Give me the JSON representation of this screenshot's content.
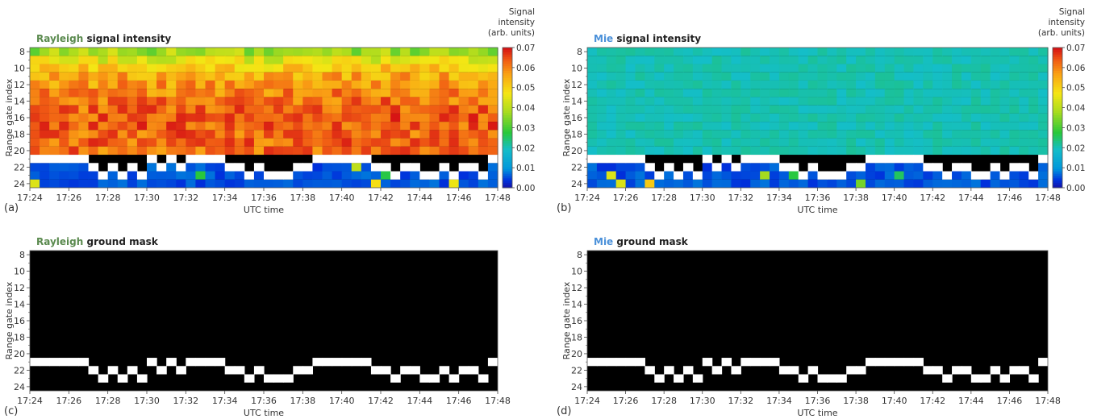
{
  "chart_data": [
    {
      "type": "heatmap",
      "panel_label": "(a)",
      "title_highlight": "Rayleigh",
      "title_rest": "signal intensity",
      "highlight_color": "#5a8a4e",
      "colormap": "rainbow",
      "xlabel": "UTC time",
      "ylabel": "Range gate index",
      "x_ticks": [
        "17:24",
        "17:26",
        "17:28",
        "17:30",
        "17:32",
        "17:34",
        "17:36",
        "17:38",
        "17:40",
        "17:42",
        "17:44",
        "17:46",
        "17:48"
      ],
      "y_ticks": [
        8,
        10,
        12,
        14,
        16,
        18,
        20,
        22,
        24
      ],
      "ylim": [
        7.5,
        24.5
      ],
      "colorbar": {
        "label_lines": [
          "Signal",
          "intensity",
          "(arb. units)"
        ],
        "ticks": [
          "0.00",
          "0.01",
          "0.02",
          "0.03",
          "0.04",
          "0.05",
          "0.06",
          "0.07"
        ],
        "range": [
          0,
          0.07
        ]
      },
      "intensity_profile": [
        {
          "gate": 8,
          "value": 0.038
        },
        {
          "gate": 9,
          "value": 0.045
        },
        {
          "gate": 10,
          "value": 0.052
        },
        {
          "gate": 11,
          "value": 0.056
        },
        {
          "gate": 12,
          "value": 0.058
        },
        {
          "gate": 13,
          "value": 0.06
        },
        {
          "gate": 14,
          "value": 0.062
        },
        {
          "gate": 15,
          "value": 0.063
        },
        {
          "gate": 16,
          "value": 0.064
        },
        {
          "gate": 17,
          "value": 0.064
        },
        {
          "gate": 18,
          "value": 0.063
        },
        {
          "gate": 19,
          "value": 0.063
        },
        {
          "gate": 20,
          "value": 0.062
        }
      ],
      "below_ground_value": 0.004
    },
    {
      "type": "heatmap",
      "panel_label": "(b)",
      "title_highlight": "Mie",
      "title_rest": "signal intensity",
      "highlight_color": "#4a90d9",
      "colormap": "rainbow",
      "xlabel": "UTC time",
      "ylabel": "Range gate index",
      "x_ticks": [
        "17:24",
        "17:26",
        "17:28",
        "17:30",
        "17:32",
        "17:34",
        "17:36",
        "17:38",
        "17:40",
        "17:42",
        "17:44",
        "17:46",
        "17:48"
      ],
      "y_ticks": [
        8,
        10,
        12,
        14,
        16,
        18,
        20,
        22,
        24
      ],
      "ylim": [
        7.5,
        24.5
      ],
      "colorbar": {
        "label_lines": [
          "Signal",
          "intensity",
          "(arb. units)"
        ],
        "ticks": [
          "0.00",
          "0.01",
          "0.02",
          "0.03",
          "0.04",
          "0.05",
          "0.06",
          "0.07"
        ],
        "range": [
          0,
          0.07
        ]
      },
      "intensity_profile": [
        {
          "gate": 8,
          "value": 0.021
        },
        {
          "gate": 9,
          "value": 0.021
        },
        {
          "gate": 10,
          "value": 0.021
        },
        {
          "gate": 11,
          "value": 0.021
        },
        {
          "gate": 12,
          "value": 0.021
        },
        {
          "gate": 13,
          "value": 0.021
        },
        {
          "gate": 14,
          "value": 0.021
        },
        {
          "gate": 15,
          "value": 0.021
        },
        {
          "gate": 16,
          "value": 0.021
        },
        {
          "gate": 17,
          "value": 0.021
        },
        {
          "gate": 18,
          "value": 0.021
        },
        {
          "gate": 19,
          "value": 0.021
        },
        {
          "gate": 20,
          "value": 0.021
        }
      ],
      "below_ground_value": 0.004
    },
    {
      "type": "heatmap",
      "panel_label": "(c)",
      "title_highlight": "Rayleigh",
      "title_rest": "ground mask",
      "highlight_color": "#5a8a4e",
      "colormap": "binary (black = 0, white = ground)",
      "xlabel": "UTC time",
      "ylabel": "Range gate index",
      "x_ticks": [
        "17:24",
        "17:26",
        "17:28",
        "17:30",
        "17:32",
        "17:34",
        "17:36",
        "17:38",
        "17:40",
        "17:42",
        "17:44",
        "17:46",
        "17:48"
      ],
      "y_ticks": [
        8,
        10,
        12,
        14,
        16,
        18,
        20,
        22,
        24
      ],
      "ylim": [
        7.5,
        24.5
      ]
    },
    {
      "type": "heatmap",
      "panel_label": "(d)",
      "title_highlight": "Mie",
      "title_rest": "ground mask",
      "highlight_color": "#4a90d9",
      "colormap": "binary (black = 0, white = ground)",
      "xlabel": "UTC time",
      "ylabel": "Range gate index",
      "x_ticks": [
        "17:24",
        "17:26",
        "17:28",
        "17:30",
        "17:32",
        "17:34",
        "17:36",
        "17:38",
        "17:40",
        "17:42",
        "17:44",
        "17:46",
        "17:48"
      ],
      "y_ticks": [
        8,
        10,
        12,
        14,
        16,
        18,
        20,
        22,
        24
      ],
      "ylim": [
        7.5,
        24.5
      ]
    }
  ],
  "ground_gate_by_time": [
    {
      "time": "17:24",
      "gate": 21
    },
    {
      "time": "17:24:30",
      "gate": 21
    },
    {
      "time": "17:25",
      "gate": 21
    },
    {
      "time": "17:25:30",
      "gate": 21
    },
    {
      "time": "17:26",
      "gate": 21
    },
    {
      "time": "17:26:30",
      "gate": 21
    },
    {
      "time": "17:27",
      "gate": 22
    },
    {
      "time": "17:27:30",
      "gate": 23
    },
    {
      "time": "17:28",
      "gate": 22
    },
    {
      "time": "17:28:30",
      "gate": 23
    },
    {
      "time": "17:29",
      "gate": 22
    },
    {
      "time": "17:29:30",
      "gate": 23
    },
    {
      "time": "17:30",
      "gate": 21
    },
    {
      "time": "17:30:30",
      "gate": 22
    },
    {
      "time": "17:31",
      "gate": 21
    },
    {
      "time": "17:31:30",
      "gate": 22
    },
    {
      "time": "17:32",
      "gate": 21
    },
    {
      "time": "17:32:30",
      "gate": 21
    },
    {
      "time": "17:33",
      "gate": 21
    },
    {
      "time": "17:33:30",
      "gate": 21
    },
    {
      "time": "17:34",
      "gate": 22
    },
    {
      "time": "17:34:30",
      "gate": 22
    },
    {
      "time": "17:35",
      "gate": 23
    },
    {
      "time": "17:35:30",
      "gate": 22
    },
    {
      "time": "17:36",
      "gate": 23
    },
    {
      "time": "17:36:30",
      "gate": 23
    },
    {
      "time": "17:37",
      "gate": 23
    },
    {
      "time": "17:37:30",
      "gate": 22
    },
    {
      "time": "17:38",
      "gate": 22
    },
    {
      "time": "17:38:30",
      "gate": 21
    },
    {
      "time": "17:39",
      "gate": 21
    },
    {
      "time": "17:39:30",
      "gate": 21
    },
    {
      "time": "17:40",
      "gate": 21
    },
    {
      "time": "17:40:30",
      "gate": 21
    },
    {
      "time": "17:41",
      "gate": 21
    },
    {
      "time": "17:41:30",
      "gate": 22
    },
    {
      "time": "17:42",
      "gate": 22
    },
    {
      "time": "17:42:30",
      "gate": 23
    },
    {
      "time": "17:43",
      "gate": 22
    },
    {
      "time": "17:43:30",
      "gate": 22
    },
    {
      "time": "17:44",
      "gate": 23
    },
    {
      "time": "17:44:30",
      "gate": 23
    },
    {
      "time": "17:45",
      "gate": 22
    },
    {
      "time": "17:45:30",
      "gate": 23
    },
    {
      "time": "17:46",
      "gate": 22
    },
    {
      "time": "17:46:30",
      "gate": 22
    },
    {
      "time": "17:47",
      "gate": 23
    },
    {
      "time": "17:47:30",
      "gate": 21
    }
  ]
}
